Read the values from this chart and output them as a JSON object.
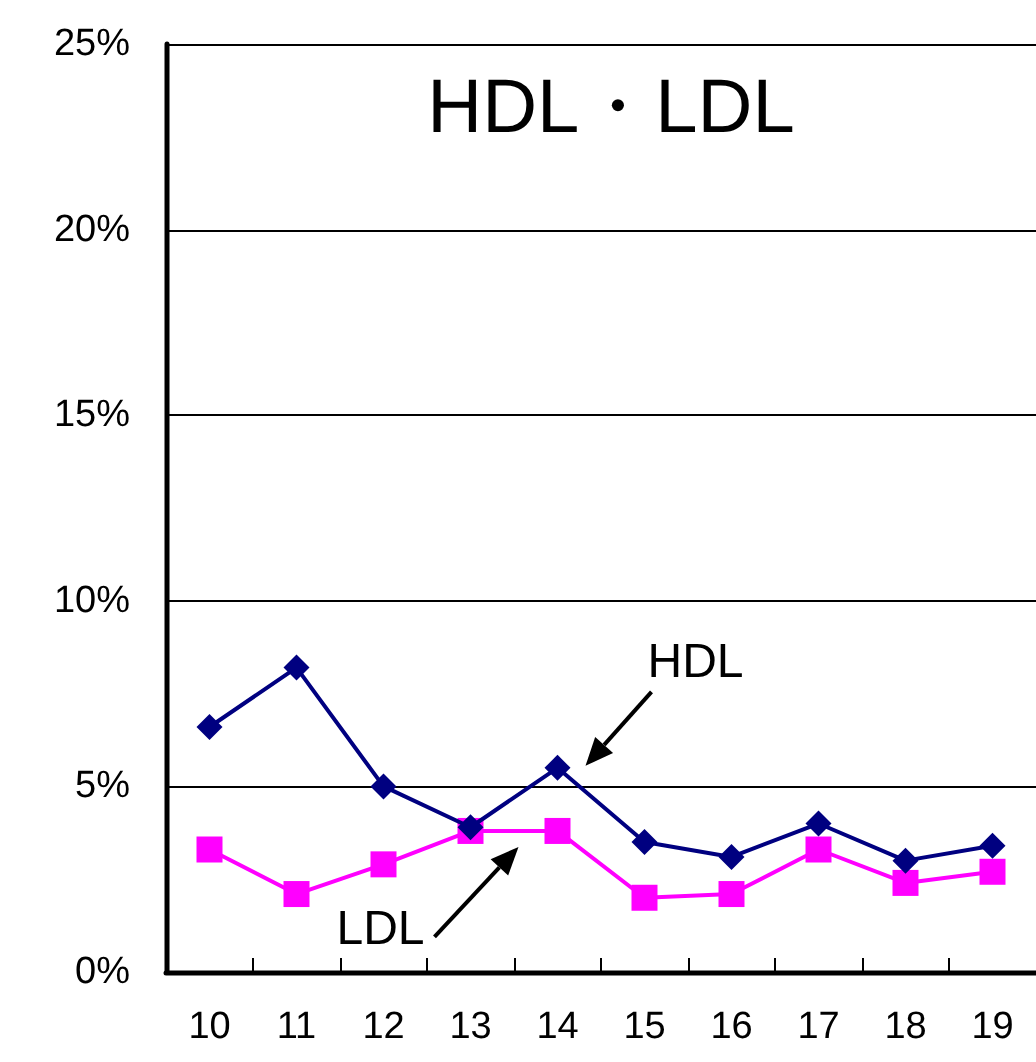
{
  "chart_data": {
    "type": "line",
    "title": "HDL・LDL",
    "categories": [
      "10",
      "11",
      "12",
      "13",
      "14",
      "15",
      "16",
      "17",
      "18",
      "19"
    ],
    "series": [
      {
        "name": "HDL",
        "color": "#000080",
        "marker": "diamond",
        "values": [
          6.6,
          8.2,
          5.0,
          3.9,
          5.5,
          3.5,
          3.1,
          4.0,
          3.0,
          3.4
        ]
      },
      {
        "name": "LDL",
        "color": "#ff00ff",
        "marker": "square",
        "values": [
          3.3,
          2.1,
          2.9,
          3.8,
          3.8,
          2.0,
          2.1,
          3.3,
          2.4,
          2.7
        ]
      }
    ],
    "ylim": [
      0,
      25
    ],
    "yticks": [
      {
        "value": 0,
        "label": "0%"
      },
      {
        "value": 5,
        "label": "5%"
      },
      {
        "value": 10,
        "label": "10%"
      },
      {
        "value": 15,
        "label": "15%"
      },
      {
        "value": 20,
        "label": "20%"
      },
      {
        "value": 25,
        "label": "25%"
      }
    ],
    "grid": "y",
    "legend": false,
    "line_style": "solid"
  }
}
